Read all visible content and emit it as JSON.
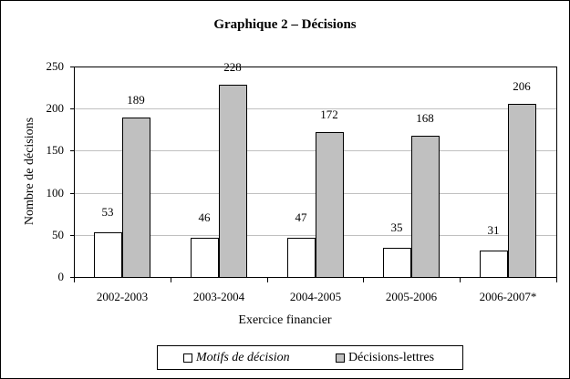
{
  "chart_data": {
    "type": "bar",
    "title": "Graphique 2 – Décisions",
    "xlabel": "Exercice financier",
    "ylabel": "Nombre de décisions",
    "ylim": [
      0,
      250
    ],
    "yticks": [
      0,
      50,
      100,
      150,
      200,
      250
    ],
    "grid": true,
    "legend_position": "bottom",
    "categories": [
      "2002-2003",
      "2003-2004",
      "2004-2005",
      "2005-2006",
      "2006-2007*"
    ],
    "series": [
      {
        "name": "Motifs de décision",
        "color": "#ffffff",
        "values": [
          53,
          46,
          47,
          35,
          31
        ]
      },
      {
        "name": "Décisions-lettres",
        "color": "#c0c0c0",
        "values": [
          189,
          228,
          172,
          168,
          206
        ]
      }
    ]
  },
  "labels": {
    "title": "Graphique 2 – Décisions",
    "xlabel": "Exercice financier",
    "ylabel": "Nombre de décisions",
    "yticks": [
      "0",
      "50",
      "100",
      "150",
      "200",
      "250"
    ],
    "categories": [
      "2002-2003",
      "2003-2004",
      "2004-2005",
      "2005-2006",
      "2006-2007*"
    ],
    "legend": [
      "Motifs de décision",
      "Décisions-lettres"
    ],
    "s1": [
      "53",
      "46",
      "47",
      "35",
      "31"
    ],
    "s2": [
      "189",
      "228",
      "172",
      "168",
      "206"
    ]
  }
}
